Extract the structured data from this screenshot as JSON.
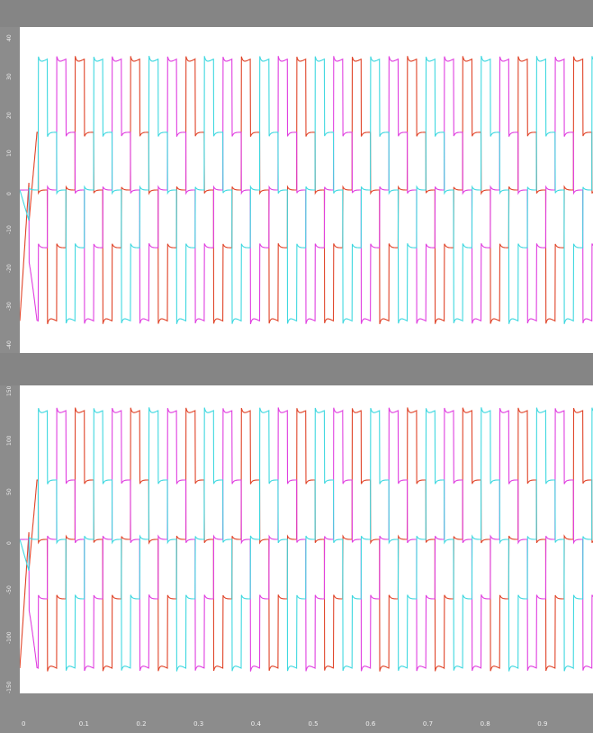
{
  "chart_data": [
    {
      "type": "line",
      "title": "",
      "xlabel": "",
      "ylabel": "",
      "xlim": [
        0,
        1
      ],
      "ylim": [
        -40,
        40
      ],
      "yticks": [
        "40",
        "30",
        "20",
        "10",
        "0",
        "-10",
        "-20",
        "-30",
        "-40"
      ],
      "grid": false,
      "legend": "none",
      "period": 0.0966,
      "plateau_levels": [
        34,
        15,
        0,
        -15,
        -34
      ],
      "series": [
        {
          "name": "",
          "color": "#e0452a",
          "phase_shift_deg": 0
        },
        {
          "name": "",
          "color": "#e040e0",
          "phase_shift_deg": 120
        },
        {
          "name": "",
          "color": "#40d8e0",
          "phase_shift_deg": 240
        }
      ]
    },
    {
      "type": "line",
      "title": "",
      "xlabel": "",
      "ylabel": "",
      "xlim": [
        0,
        1
      ],
      "ylim": [
        -150,
        150
      ],
      "yticks": [
        "150",
        "100",
        "50",
        "0",
        "-50",
        "-100",
        "-150"
      ],
      "xticks": [
        "0",
        "0.1",
        "0.2",
        "0.3",
        "0.4",
        "0.5",
        "0.6",
        "0.7",
        "0.8",
        "0.9"
      ],
      "grid": false,
      "legend": "none",
      "period": 0.0966,
      "plateau_levels": [
        130,
        60,
        0,
        -60,
        -130
      ],
      "series": [
        {
          "name": "",
          "color": "#e0452a",
          "phase_shift_deg": 0
        },
        {
          "name": "",
          "color": "#e040e0",
          "phase_shift_deg": 120
        },
        {
          "name": "",
          "color": "#40d8e0",
          "phase_shift_deg": 240
        }
      ]
    }
  ]
}
